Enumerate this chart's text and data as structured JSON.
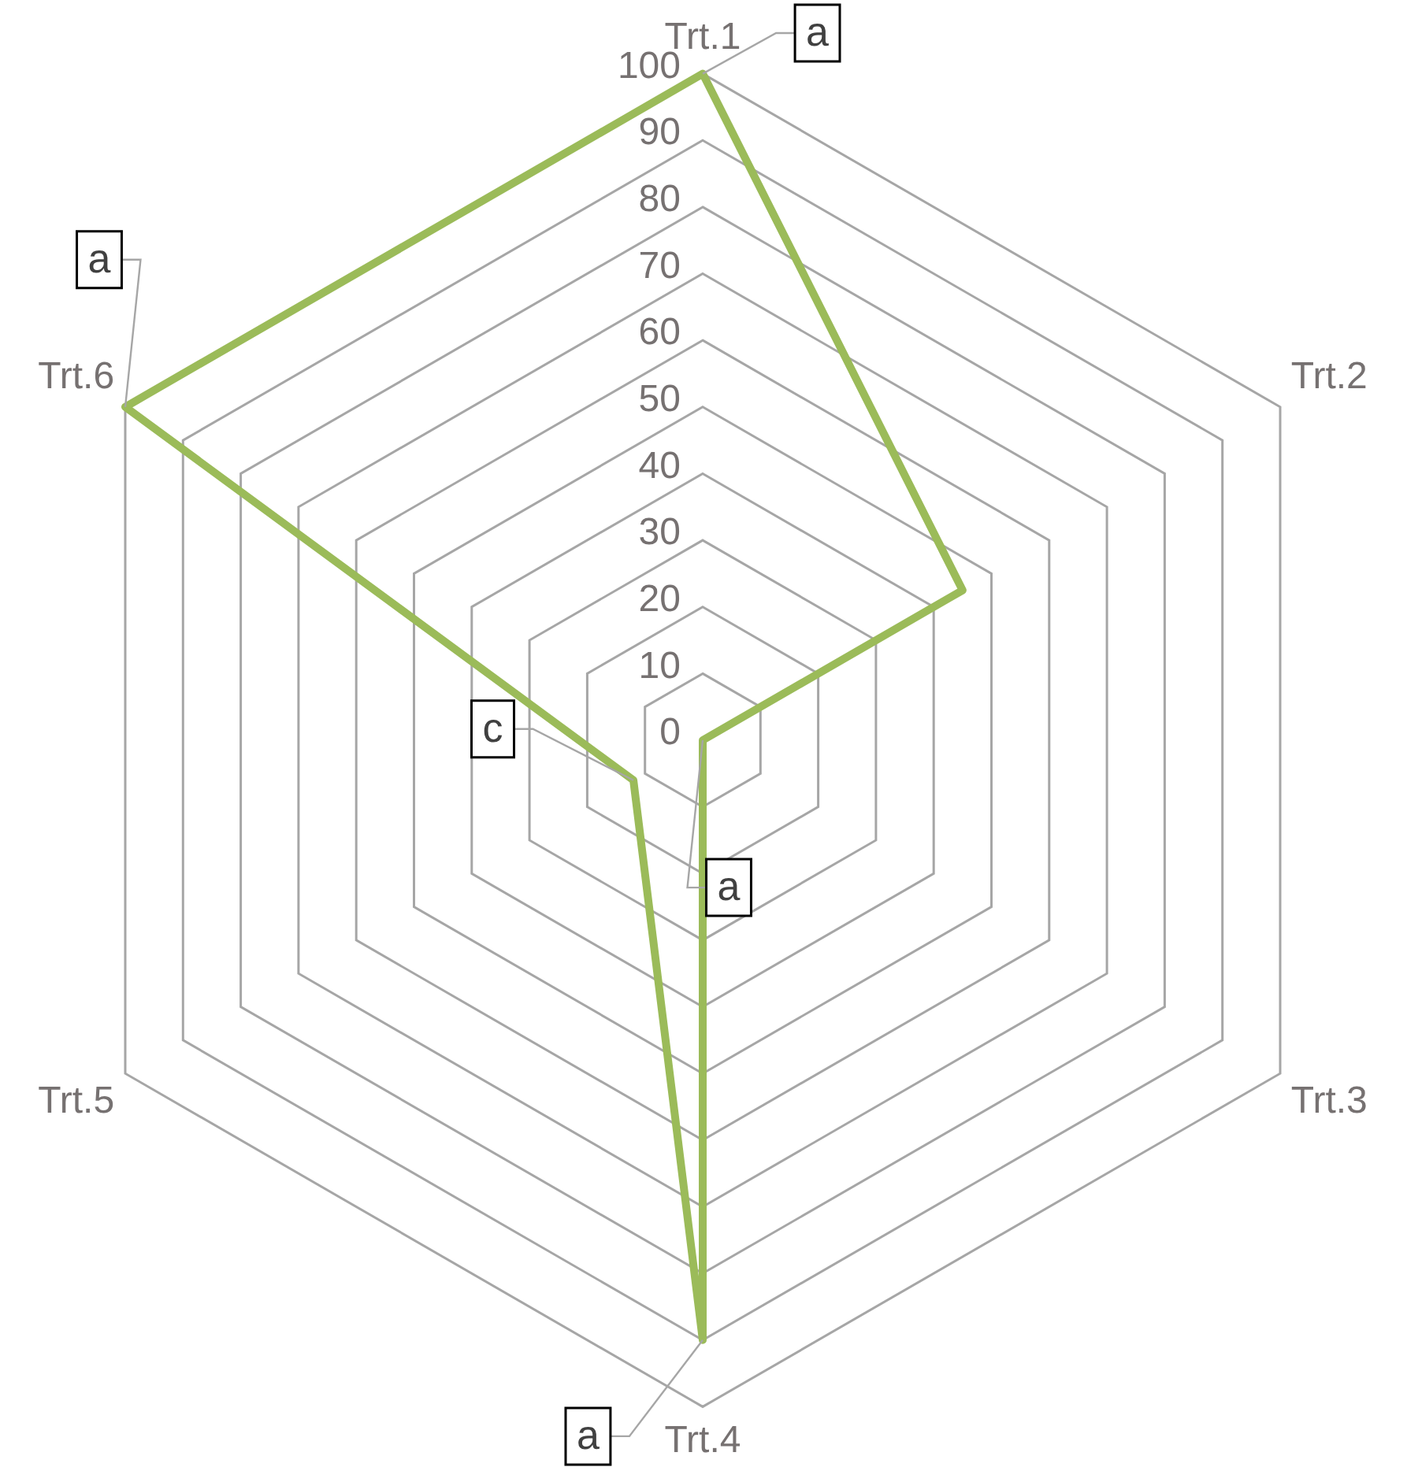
{
  "chart_data": {
    "type": "radar",
    "categories": [
      "Trt.1",
      "Trt.2",
      "Trt.3",
      "Trt.4",
      "Trt.5",
      "Trt.6"
    ],
    "series": [
      {
        "color": "#9bbb59",
        "values": [
          100,
          45,
          0,
          90,
          12,
          100
        ],
        "value_labels": [
          "a",
          null,
          "a",
          "a",
          "c",
          "a"
        ]
      }
    ],
    "ylim": [
      0,
      100
    ],
    "yticks": [
      0,
      10,
      20,
      30,
      40,
      50,
      60,
      70,
      80,
      90,
      100
    ],
    "grid": true,
    "legend": false,
    "marker": "none",
    "line_style": "solid"
  }
}
